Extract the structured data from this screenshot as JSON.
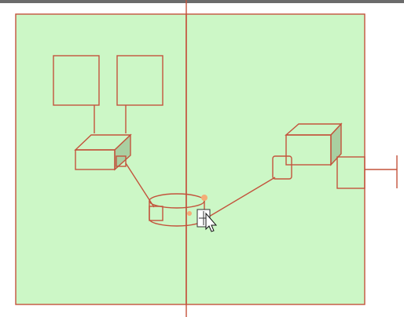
{
  "canvas": {
    "background": "#ffffff",
    "top_bar_color": "#6b6b6b"
  },
  "diagram": {
    "frame_fill": "#ccf7c6",
    "stroke_color": "#c3533c",
    "side_face_color": "#a9cfa1",
    "selection_handle_color": "#f4ad76",
    "elements": [
      "left-frame",
      "right-frame",
      "vertical-divider",
      "rectangle-top-left",
      "rectangle-top-right",
      "left-3d-box",
      "right-3d-box",
      "cylinder",
      "connector-line-left",
      "connector-line-right",
      "external-port"
    ]
  }
}
